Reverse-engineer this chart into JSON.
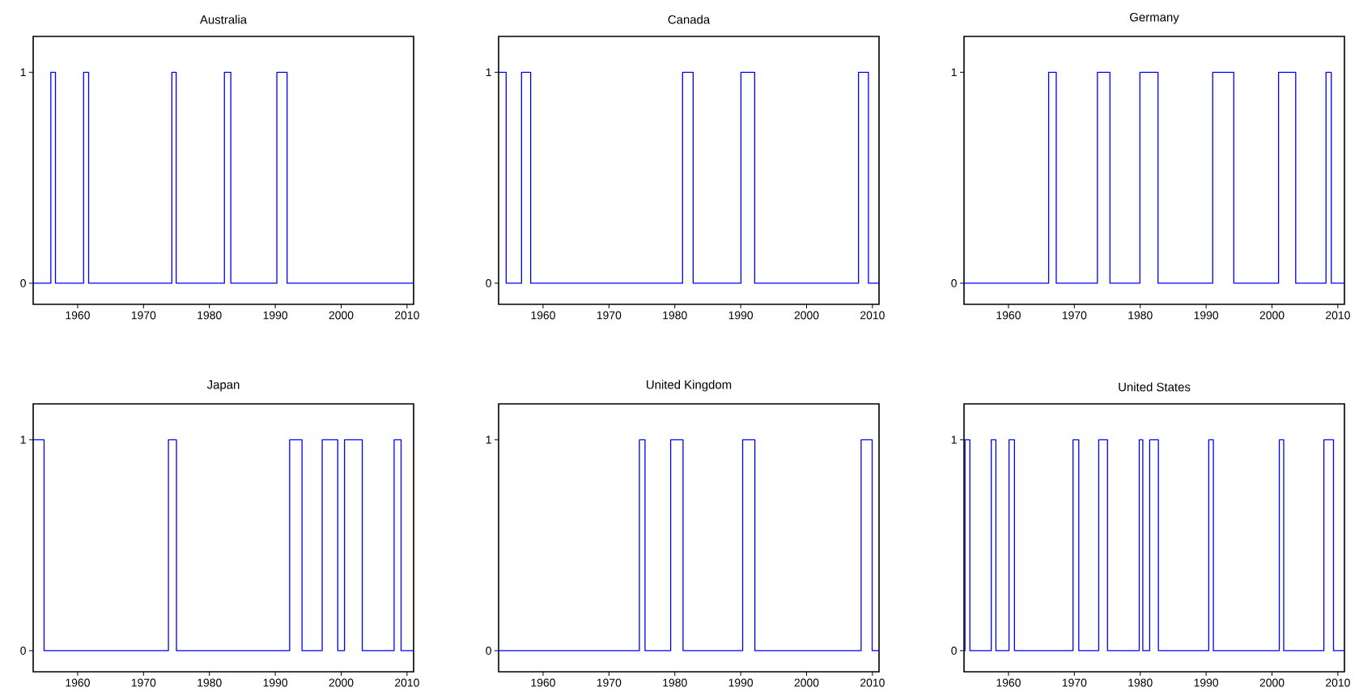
{
  "chart_data": [
    {
      "type": "step",
      "title": "Australia",
      "color": "#0000ff",
      "xlim": [
        1953.25,
        2011
      ],
      "ylim": [
        -0.1,
        1.17
      ],
      "xticks": [
        1960,
        1970,
        1980,
        1990,
        2000,
        2010
      ],
      "yticks": [
        0,
        1
      ],
      "x": [
        1953.25,
        1955.93,
        1956.63,
        1960.9,
        1961.67,
        1974.3,
        1974.96,
        1982.28,
        1983.25,
        1990.24,
        1991.79,
        2011
      ],
      "values": [
        0,
        1,
        0,
        1,
        0,
        1,
        0,
        1,
        0,
        1,
        0,
        0
      ]
    },
    {
      "type": "step",
      "title": "Canada",
      "color": "#0000ff",
      "xlim": [
        1953.25,
        2011
      ],
      "ylim": [
        -0.1,
        1.17
      ],
      "xticks": [
        1960,
        1970,
        1980,
        1990,
        2000,
        2010
      ],
      "yticks": [
        0,
        1
      ],
      "x": [
        1953.25,
        1954.4,
        1956.73,
        1958.12,
        1981.18,
        1982.78,
        1990.04,
        1992.12,
        2007.88,
        2009.39,
        2011
      ],
      "values": [
        1,
        0,
        1,
        0,
        1,
        0,
        1,
        0,
        1,
        0,
        0
      ]
    },
    {
      "type": "step",
      "title": "Germany",
      "color": "#0000ff",
      "xlim": [
        1953.25,
        2011
      ],
      "ylim": [
        -0.1,
        1.17
      ],
      "xticks": [
        1960,
        1970,
        1980,
        1990,
        2000,
        2010
      ],
      "yticks": [
        0,
        1
      ],
      "x": [
        1953.25,
        1966.1,
        1967.25,
        1973.5,
        1975.4,
        1979.95,
        1982.7,
        1991.0,
        1994.2,
        2001.0,
        2003.6,
        2008.2,
        2009.0,
        2011
      ],
      "values": [
        0,
        1,
        0,
        1,
        0,
        1,
        0,
        1,
        0,
        1,
        0,
        1,
        0,
        0
      ]
    },
    {
      "type": "step",
      "title": "Japan",
      "color": "#0000ff",
      "xlim": [
        1953.25,
        2011
      ],
      "ylim": [
        -0.1,
        1.17
      ],
      "xticks": [
        1960,
        1970,
        1980,
        1990,
        2000,
        2010
      ],
      "yticks": [
        0,
        1
      ],
      "x": [
        1953.25,
        1954.9,
        1973.78,
        1975.0,
        1992.18,
        1994.06,
        1997.12,
        1999.49,
        2000.51,
        2003.21,
        2008.04,
        2009.1,
        2011
      ],
      "values": [
        1,
        0,
        1,
        0,
        1,
        0,
        1,
        0,
        1,
        0,
        1,
        0,
        0
      ]
    },
    {
      "type": "step",
      "title": "United Kingdom",
      "color": "#0000ff",
      "xlim": [
        1953.25,
        2011
      ],
      "ylim": [
        -0.1,
        1.17
      ],
      "xticks": [
        1960,
        1970,
        1980,
        1990,
        2000,
        2010
      ],
      "yticks": [
        0,
        1
      ],
      "x": [
        1953.25,
        1974.62,
        1975.48,
        1979.37,
        1981.25,
        1990.3,
        1992.15,
        2008.28,
        2009.96,
        2011
      ],
      "values": [
        0,
        1,
        0,
        1,
        0,
        1,
        0,
        1,
        0,
        0
      ]
    },
    {
      "type": "step",
      "title": "United States",
      "color": "#0000ff",
      "xlim": [
        1953.25,
        2011
      ],
      "ylim": [
        -0.1,
        1.17
      ],
      "xticks": [
        1960,
        1970,
        1980,
        1990,
        2000,
        2010
      ],
      "yticks": [
        0,
        1
      ],
      "x": [
        1953.25,
        1953.4,
        1954.14,
        1957.38,
        1958.09,
        1960.08,
        1960.91,
        1969.8,
        1970.67,
        1973.7,
        1975.03,
        1979.85,
        1980.39,
        1981.43,
        1982.76,
        1990.4,
        1991.1,
        2001.11,
        2001.78,
        2007.88,
        2009.34,
        2011
      ],
      "values": [
        0,
        1,
        0,
        1,
        0,
        1,
        0,
        1,
        0,
        1,
        0,
        1,
        0,
        1,
        0,
        1,
        0,
        1,
        0,
        1,
        0,
        0
      ]
    }
  ]
}
